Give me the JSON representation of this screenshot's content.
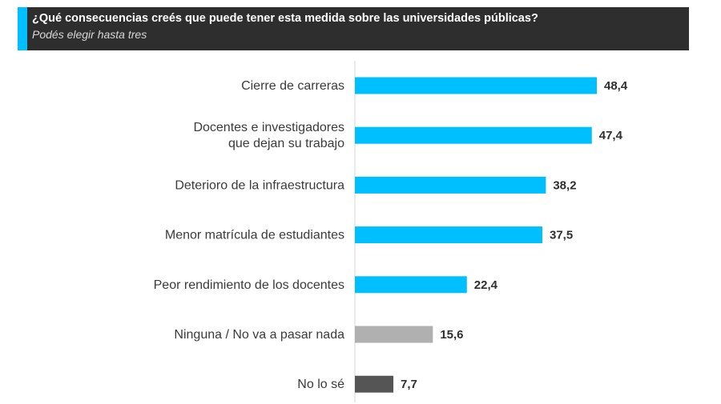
{
  "header": {
    "title": "¿Qué consecuencias creés que puede tener esta medida sobre las universidades públicas?",
    "subtitle": "Podés elegir hasta tres"
  },
  "colors": {
    "accent": "#00bfff",
    "header_bg": "#2e2e2e"
  },
  "chart_data": {
    "type": "bar",
    "orientation": "horizontal",
    "title": "¿Qué consecuencias creés que puede tener esta medida sobre las universidades públicas?",
    "subtitle": "Podés elegir hasta tres",
    "xlim": [
      0,
      48.4
    ],
    "categories": [
      [
        "Cierre de carreras"
      ],
      [
        "Docentes e investigadores",
        "que dejan su trabajo"
      ],
      [
        "Deterioro de la infraestructura"
      ],
      [
        "Menor matrícula de estudiantes"
      ],
      [
        "Peor rendimiento de los docentes"
      ],
      [
        "Ninguna / No va a pasar nada"
      ],
      [
        "No lo sé"
      ]
    ],
    "values": [
      48.4,
      47.4,
      38.2,
      37.5,
      22.4,
      15.6,
      7.7
    ],
    "value_labels": [
      "48,4",
      "47,4",
      "38,2",
      "37,5",
      "22,4",
      "15,6",
      "7,7"
    ],
    "bar_colors": [
      "#00bfff",
      "#00bfff",
      "#00bfff",
      "#00bfff",
      "#00bfff",
      "#b0b0b0",
      "#555555"
    ]
  }
}
